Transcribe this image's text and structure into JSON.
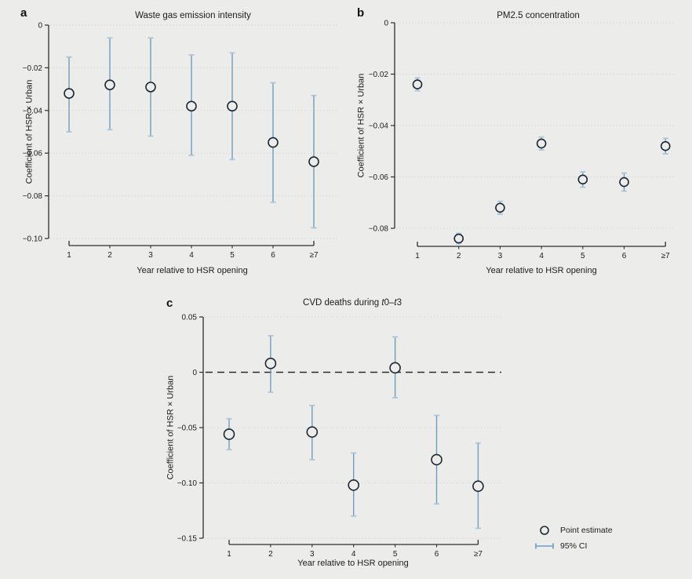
{
  "figure": {
    "background": "#ececea",
    "axis_color": "#2e2e2e",
    "text_color": "#1c1c1c",
    "grid_color": "#d4d4d0",
    "ci_color": "#6f9cbd",
    "ci_cap_color": "#a9c6db",
    "marker_color": "#1c2733",
    "zero_line_color": "#2b2b2b"
  },
  "legend": {
    "point_label": "Point estimate",
    "ci_label": "95% CI"
  },
  "chart_data": [
    {
      "panel": "a",
      "panel_letter": "a",
      "type": "scatter",
      "title": "Waste gas emission intensity",
      "xlabel": "Year relative to HSR opening",
      "ylabel": "Coefficient of HSR × Urban",
      "categories": [
        "1",
        "2",
        "3",
        "4",
        "5",
        "6",
        "≥7"
      ],
      "ylim": [
        -0.1,
        0
      ],
      "yticks": [
        0,
        -0.02,
        -0.04,
        -0.06,
        -0.08,
        -0.1
      ],
      "ytick_labels": [
        "0",
        "−0.02",
        "−0.04",
        "−0.06",
        "−0.08",
        "−0.10"
      ],
      "grid": true,
      "zero_line": false,
      "series": [
        {
          "name": "Point estimate",
          "values": [
            -0.032,
            -0.028,
            -0.029,
            -0.038,
            -0.038,
            -0.055,
            -0.064
          ],
          "ci_low": [
            -0.05,
            -0.049,
            -0.052,
            -0.061,
            -0.063,
            -0.083,
            -0.095
          ],
          "ci_high": [
            -0.015,
            -0.006,
            -0.006,
            -0.014,
            -0.013,
            -0.027,
            -0.033
          ]
        }
      ]
    },
    {
      "panel": "b",
      "panel_letter": "b",
      "type": "scatter",
      "title": "PM2.5 concentration",
      "xlabel": "Year relative to HSR opening",
      "ylabel": "Coefficient of HSR × Urban",
      "categories": [
        "1",
        "2",
        "3",
        "4",
        "5",
        "6",
        "≥7"
      ],
      "ylim": [
        -0.08,
        0
      ],
      "yticks": [
        0,
        -0.02,
        -0.04,
        -0.06,
        -0.08
      ],
      "ytick_labels": [
        "0",
        "−0.02",
        "−0.04",
        "−0.06",
        "−0.08"
      ],
      "grid": true,
      "zero_line": false,
      "series": [
        {
          "name": "Point estimate",
          "values": [
            -0.024,
            -0.084,
            -0.072,
            -0.047,
            -0.061,
            -0.062,
            -0.048
          ],
          "ci_low": [
            -0.0265,
            -0.086,
            -0.0745,
            -0.0495,
            -0.064,
            -0.0655,
            -0.051
          ],
          "ci_high": [
            -0.0215,
            -0.082,
            -0.0695,
            -0.0445,
            -0.058,
            -0.0585,
            -0.045
          ]
        }
      ]
    },
    {
      "panel": "c",
      "panel_letter": "c",
      "type": "scatter",
      "title": "CVD deaths during t0–t3",
      "title_parts": [
        "CVD deaths during ",
        "t",
        "0–",
        "t",
        "3"
      ],
      "xlabel": "Year relative to HSR opening",
      "ylabel": "Coefficient of HSR × Urban",
      "categories": [
        "1",
        "2",
        "3",
        "4",
        "5",
        "6",
        "≥7"
      ],
      "ylim": [
        -0.15,
        0.05
      ],
      "yticks": [
        0.05,
        0,
        -0.05,
        -0.1,
        -0.15
      ],
      "ytick_labels": [
        "0.05",
        "0",
        "−0.05",
        "−0.10",
        "−0.15"
      ],
      "grid": true,
      "zero_line": true,
      "series": [
        {
          "name": "Point estimate",
          "values": [
            -0.056,
            0.008,
            -0.054,
            -0.102,
            0.004,
            -0.079,
            -0.103
          ],
          "ci_low": [
            -0.07,
            -0.018,
            -0.079,
            -0.13,
            -0.023,
            -0.119,
            -0.141
          ],
          "ci_high": [
            -0.042,
            0.033,
            -0.03,
            -0.073,
            0.032,
            -0.039,
            -0.064
          ]
        }
      ]
    }
  ]
}
